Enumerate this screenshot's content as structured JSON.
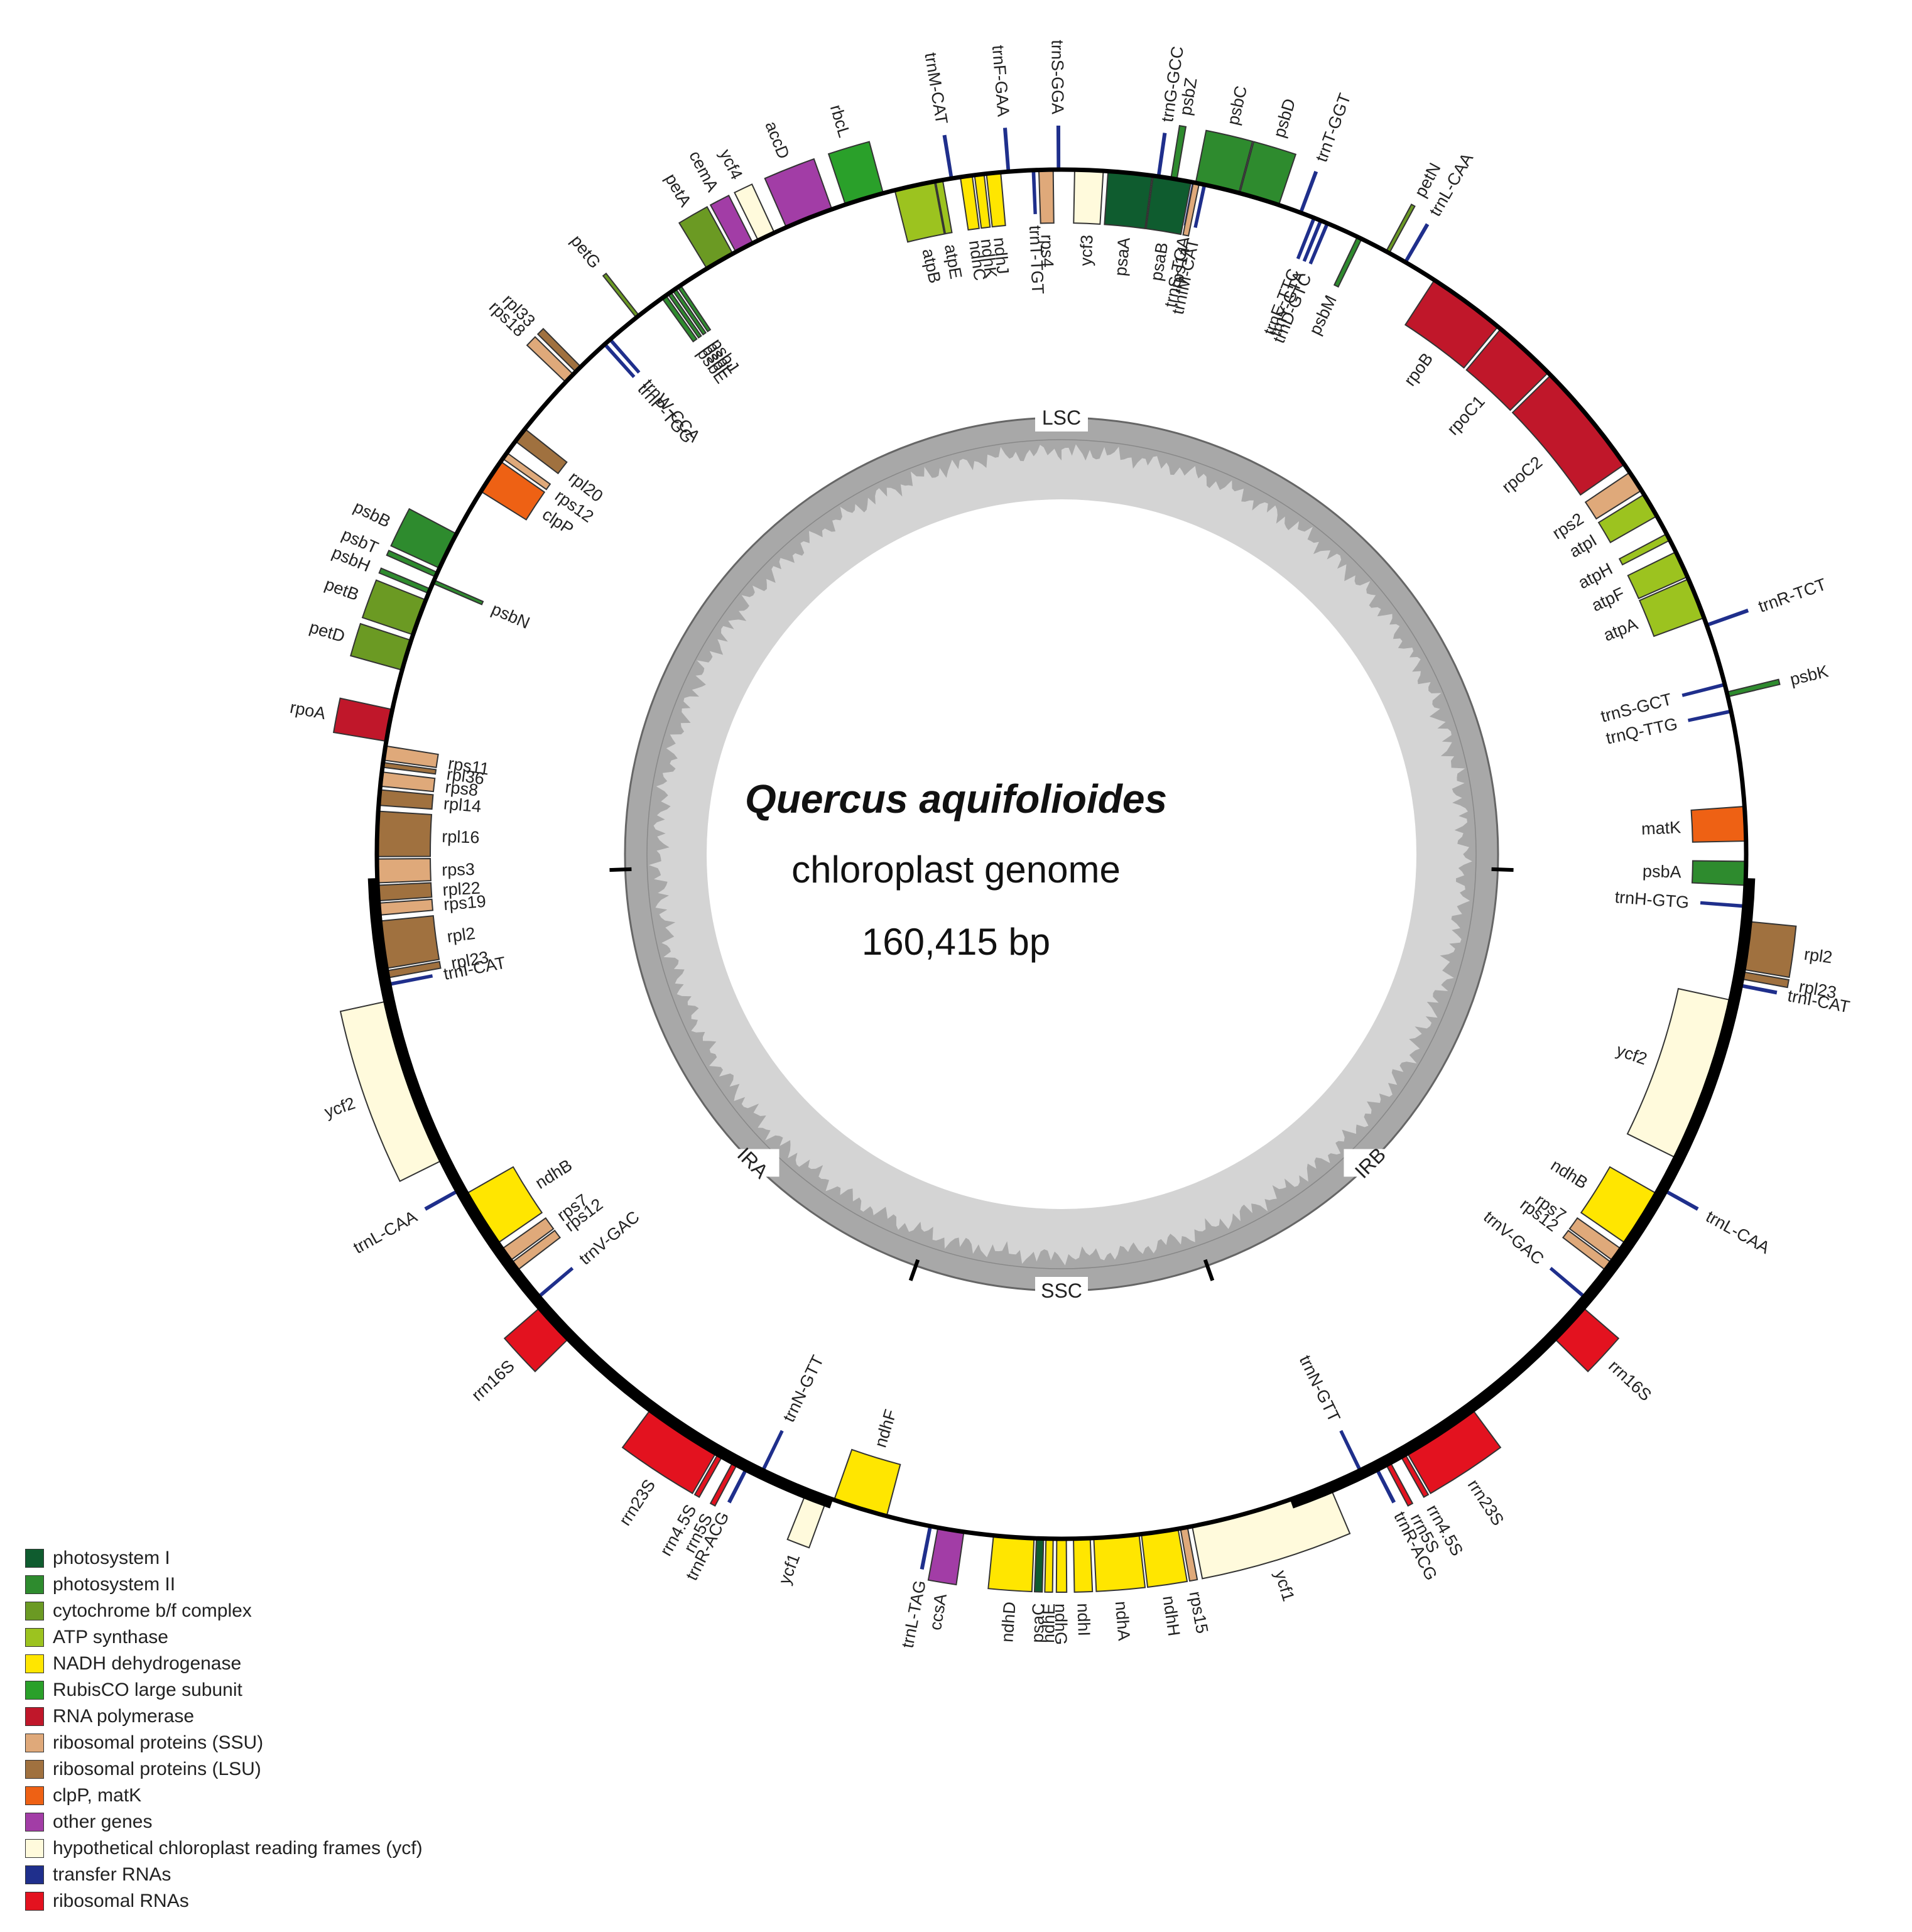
{
  "title": {
    "species": "Quercus aquifolioides",
    "subtitle": "chloroplast genome",
    "length": "160,415 bp"
  },
  "regions": [
    {
      "label": "LSC",
      "at": 0
    },
    {
      "label": "IRB",
      "at": 135
    },
    {
      "label": "SSC",
      "at": 180
    },
    {
      "label": "IRA",
      "at": 225
    }
  ],
  "boundaries": [
    92,
    160.5,
    199.5,
    268
  ],
  "categories": [
    {
      "key": "ps1",
      "label": "photosystem I",
      "color": "#0f5c2f"
    },
    {
      "key": "ps2",
      "label": "photosystem II",
      "color": "#2e8b2e"
    },
    {
      "key": "cyt",
      "label": "cytochrome b/f complex",
      "color": "#6b9a23"
    },
    {
      "key": "atp",
      "label": "ATP synthase",
      "color": "#9cc31f"
    },
    {
      "key": "ndh",
      "label": "NADH dehydrogenase",
      "color": "#ffe600"
    },
    {
      "key": "rbc",
      "label": "RubisCO large subunit",
      "color": "#2aa02a"
    },
    {
      "key": "rpo",
      "label": "RNA polymerase",
      "color": "#c0172a"
    },
    {
      "key": "ssu",
      "label": "ribosomal proteins (SSU)",
      "color": "#dfa97a"
    },
    {
      "key": "lsu",
      "label": "ribosomal proteins (LSU)",
      "color": "#a0713f"
    },
    {
      "key": "clp",
      "label": "clpP, matK",
      "color": "#ee6114"
    },
    {
      "key": "oth",
      "label": "other genes",
      "color": "#a23da6"
    },
    {
      "key": "ycf",
      "label": "hypothetical chloroplast reading frames (ycf)",
      "color": "#fffadc"
    },
    {
      "key": "trna",
      "label": "transfer RNAs",
      "color": "#1f2f8c"
    },
    {
      "key": "rrna",
      "label": "ribosomal RNAs",
      "color": "#e3121f"
    }
  ],
  "genes": [
    {
      "name": "trnG-GCC",
      "cat": "trna",
      "start": 8.0,
      "end": 8.3,
      "side": "out"
    },
    {
      "name": "psbZ",
      "cat": "ps2",
      "start": 9.2,
      "end": 9.7,
      "side": "out"
    },
    {
      "name": "psbC",
      "cat": "ps2",
      "start": 11.3,
      "end": 15.0,
      "side": "out"
    },
    {
      "name": "psbD",
      "cat": "ps2",
      "start": 15.1,
      "end": 18.5,
      "side": "out"
    },
    {
      "name": "trnT-GGT",
      "cat": "trna",
      "start": 20.3,
      "end": 20.6,
      "side": "out"
    },
    {
      "name": "petN",
      "cat": "cyt",
      "start": 28.3,
      "end": 28.6,
      "side": "out"
    },
    {
      "name": "trnL-CAA",
      "cat": "trna",
      "start": 30.0,
      "end": 30.3,
      "side": "out"
    },
    {
      "name": "trnS-TGA",
      "cat": "trna",
      "start": 11.0,
      "end": 11.3,
      "side": "in"
    },
    {
      "name": "trnE-TTC",
      "cat": "trna",
      "start": 21.5,
      "end": 21.8,
      "side": "in"
    },
    {
      "name": "trnY-GTA",
      "cat": "trna",
      "start": 22.1,
      "end": 22.4,
      "side": "in"
    },
    {
      "name": "trnD-GTC",
      "cat": "trna",
      "start": 22.7,
      "end": 23.0,
      "side": "in"
    },
    {
      "name": "psbM",
      "cat": "ps2",
      "start": 25.6,
      "end": 26.0,
      "side": "in"
    },
    {
      "name": "rpoB",
      "cat": "rpo",
      "start": 33.0,
      "end": 39.6,
      "side": "in"
    },
    {
      "name": "rpoC1",
      "cat": "rpo",
      "start": 39.9,
      "end": 45.3,
      "side": "in"
    },
    {
      "name": "rpoC2",
      "cat": "rpo",
      "start": 45.6,
      "end": 55.3,
      "side": "in"
    },
    {
      "name": "rps2",
      "cat": "ssu",
      "start": 56.1,
      "end": 57.9,
      "side": "in"
    },
    {
      "name": "atpI",
      "cat": "atp",
      "start": 58.3,
      "end": 60.4,
      "side": "in"
    },
    {
      "name": "atpH",
      "cat": "atp",
      "start": 62.1,
      "end": 62.7,
      "side": "in"
    },
    {
      "name": "atpF",
      "cat": "atp",
      "start": 63.8,
      "end": 66.1,
      "side": "in"
    },
    {
      "name": "atpA",
      "cat": "atp",
      "start": 66.3,
      "end": 69.8,
      "side": "in"
    },
    {
      "name": "trnR-TCT",
      "cat": "trna",
      "start": 70.3,
      "end": 70.6,
      "side": "out"
    },
    {
      "name": "trnS-GCT",
      "cat": "trna",
      "start": 75.5,
      "end": 75.8,
      "side": "in"
    },
    {
      "name": "psbK",
      "cat": "ps2",
      "start": 76.3,
      "end": 76.7,
      "side": "out"
    },
    {
      "name": "trnQ-TTG",
      "cat": "trna",
      "start": 77.8,
      "end": 78.1,
      "side": "in"
    },
    {
      "name": "matK",
      "cat": "clp",
      "start": 86.0,
      "end": 88.9,
      "side": "in"
    },
    {
      "name": "psbA",
      "cat": "ps2",
      "start": 90.6,
      "end": 92.6,
      "side": "in"
    },
    {
      "name": "trnH-GTG",
      "cat": "trna",
      "start": 94.2,
      "end": 94.5,
      "side": "in"
    },
    {
      "name": "rpl2",
      "cat": "lsu",
      "start": 95.6,
      "end": 99.6,
      "side": "out"
    },
    {
      "name": "rpl23",
      "cat": "lsu",
      "start": 99.8,
      "end": 100.4,
      "side": "out"
    },
    {
      "name": "trnI-CAT",
      "cat": "trna",
      "start": 100.8,
      "end": 101.1,
      "side": "out"
    },
    {
      "name": "ycf2",
      "cat": "ycf",
      "start": 102.3,
      "end": 116.3,
      "side": "in"
    },
    {
      "name": "trnL-CAA",
      "cat": "trna",
      "start": 119.0,
      "end": 119.3,
      "side": "out"
    },
    {
      "name": "ndhB",
      "cat": "ndh",
      "start": 119.7,
      "end": 124.6,
      "side": "in"
    },
    {
      "name": "rps7",
      "cat": "ssu",
      "start": 125.2,
      "end": 126.4,
      "side": "in"
    },
    {
      "name": "rps12",
      "cat": "ssu",
      "start": 126.6,
      "end": 127.4,
      "side": "in"
    },
    {
      "name": "trnV-GAC",
      "cat": "trna",
      "start": 130.1,
      "end": 130.4,
      "side": "in"
    },
    {
      "name": "rrn16S",
      "cat": "rrna",
      "start": 131.0,
      "end": 134.5,
      "side": "out"
    },
    {
      "name": "rrn23S",
      "cat": "rrna",
      "start": 143.5,
      "end": 150.0,
      "side": "out"
    },
    {
      "name": "rrn4.5S",
      "cat": "rrna",
      "start": 150.2,
      "end": 150.6,
      "side": "out"
    },
    {
      "name": "rrn5S",
      "cat": "rrna",
      "start": 151.6,
      "end": 152.0,
      "side": "out"
    },
    {
      "name": "trnR-ACG",
      "cat": "trna",
      "start": 152.7,
      "end": 153.0,
      "side": "out"
    },
    {
      "name": "trnN-GTT",
      "cat": "trna",
      "start": 154.0,
      "end": 154.3,
      "side": "in"
    },
    {
      "name": "ycf1",
      "cat": "ycf",
      "start": 157.0,
      "end": 169.0,
      "side": "out"
    },
    {
      "name": "rps15",
      "cat": "ssu",
      "start": 169.4,
      "end": 170.0,
      "side": "out"
    },
    {
      "name": "ndhH",
      "cat": "ndh",
      "start": 170.2,
      "end": 173.3,
      "side": "out"
    },
    {
      "name": "ndhA",
      "cat": "ndh",
      "start": 173.5,
      "end": 177.3,
      "side": "out"
    },
    {
      "name": "ndhI",
      "cat": "ndh",
      "start": 177.6,
      "end": 179.0,
      "side": "out"
    },
    {
      "name": "ndhG",
      "cat": "ndh",
      "start": 179.6,
      "end": 180.4,
      "side": "out"
    },
    {
      "name": "ndhE",
      "cat": "ndh",
      "start": 180.7,
      "end": 181.3,
      "side": "out"
    },
    {
      "name": "psaC",
      "cat": "ps1",
      "start": 181.5,
      "end": 182.1,
      "side": "out"
    },
    {
      "name": "ndhD",
      "cat": "ndh",
      "start": 182.3,
      "end": 185.7,
      "side": "out"
    },
    {
      "name": "ccsA",
      "cat": "oth",
      "start": 188.2,
      "end": 190.4,
      "side": "out"
    },
    {
      "name": "trnL-TAG",
      "cat": "trna",
      "start": 190.9,
      "end": 191.2,
      "side": "out"
    },
    {
      "name": "ndhF",
      "cat": "ndh",
      "start": 194.8,
      "end": 199.4,
      "side": "in"
    },
    {
      "name": "ycf1",
      "cat": "ycf",
      "start": 200.0,
      "end": 201.8,
      "side": "out"
    },
    {
      "name": "trnN-GTT",
      "cat": "trna",
      "start": 205.7,
      "end": 206.0,
      "side": "in"
    },
    {
      "name": "trnR-ACG",
      "cat": "trna",
      "start": 207.0,
      "end": 207.3,
      "side": "out"
    },
    {
      "name": "rrn5S",
      "cat": "rrna",
      "start": 208.0,
      "end": 208.4,
      "side": "out"
    },
    {
      "name": "rrn4.5S",
      "cat": "rrna",
      "start": 209.4,
      "end": 209.8,
      "side": "out"
    },
    {
      "name": "rrn23S",
      "cat": "rrna",
      "start": 210.0,
      "end": 216.5,
      "side": "out"
    },
    {
      "name": "rrn16S",
      "cat": "rrna",
      "start": 225.5,
      "end": 229.0,
      "side": "out"
    },
    {
      "name": "trnV-GAC",
      "cat": "trna",
      "start": 229.6,
      "end": 229.9,
      "side": "in"
    },
    {
      "name": "rps12",
      "cat": "ssu",
      "start": 232.6,
      "end": 233.4,
      "side": "in"
    },
    {
      "name": "rps7",
      "cat": "ssu",
      "start": 233.6,
      "end": 234.8,
      "side": "in"
    },
    {
      "name": "ndhB",
      "cat": "ndh",
      "start": 235.4,
      "end": 240.3,
      "side": "in"
    },
    {
      "name": "trnL-CAA",
      "cat": "trna",
      "start": 240.7,
      "end": 241.0,
      "side": "out"
    },
    {
      "name": "ycf2",
      "cat": "ycf",
      "start": 243.7,
      "end": 257.7,
      "side": "out"
    },
    {
      "name": "trnI-CAT",
      "cat": "trna",
      "start": 258.9,
      "end": 259.2,
      "side": "in"
    },
    {
      "name": "rpl23",
      "cat": "lsu",
      "start": 259.6,
      "end": 260.2,
      "side": "in"
    },
    {
      "name": "rpl2",
      "cat": "lsu",
      "start": 260.4,
      "end": 264.4,
      "side": "in"
    },
    {
      "name": "rps19",
      "cat": "ssu",
      "start": 264.9,
      "end": 265.9,
      "side": "in"
    },
    {
      "name": "rpl22",
      "cat": "lsu",
      "start": 266.1,
      "end": 267.4,
      "side": "in"
    },
    {
      "name": "rps3",
      "cat": "ssu",
      "start": 267.6,
      "end": 269.6,
      "side": "in"
    },
    {
      "name": "rpl16",
      "cat": "lsu",
      "start": 269.8,
      "end": 273.6,
      "side": "in"
    },
    {
      "name": "rpl14",
      "cat": "lsu",
      "start": 274.1,
      "end": 275.4,
      "side": "in"
    },
    {
      "name": "rps8",
      "cat": "ssu",
      "start": 275.7,
      "end": 276.9,
      "side": "in"
    },
    {
      "name": "rpl36",
      "cat": "lsu",
      "start": 277.3,
      "end": 277.7,
      "side": "in"
    },
    {
      "name": "rps11",
      "cat": "ssu",
      "start": 277.9,
      "end": 279.1,
      "side": "in"
    },
    {
      "name": "rpoA",
      "cat": "rpo",
      "start": 279.5,
      "end": 282.2,
      "side": "out"
    },
    {
      "name": "petD",
      "cat": "cyt",
      "start": 285.6,
      "end": 288.2,
      "side": "out"
    },
    {
      "name": "petB",
      "cat": "cyt",
      "start": 288.7,
      "end": 291.8,
      "side": "out"
    },
    {
      "name": "psbH",
      "cat": "ps2",
      "start": 292.4,
      "end": 292.8,
      "side": "out"
    },
    {
      "name": "psbN",
      "cat": "ps2",
      "start": 293.3,
      "end": 293.6,
      "side": "in"
    },
    {
      "name": "psbT",
      "cat": "ps2",
      "start": 293.9,
      "end": 294.3,
      "side": "out"
    },
    {
      "name": "psbB",
      "cat": "ps2",
      "start": 294.7,
      "end": 297.9,
      "side": "out"
    },
    {
      "name": "clpP",
      "cat": "clp",
      "start": 302.0,
      "end": 305.0,
      "side": "in"
    },
    {
      "name": "rps12",
      "cat": "ssu",
      "start": 305.3,
      "end": 305.9,
      "side": "in"
    },
    {
      "name": "rpl20",
      "cat": "lsu",
      "start": 307.1,
      "end": 308.4,
      "side": "in"
    },
    {
      "name": "rps18",
      "cat": "ssu",
      "start": 313.6,
      "end": 314.5,
      "side": "out"
    },
    {
      "name": "rpl33",
      "cat": "lsu",
      "start": 314.8,
      "end": 315.4,
      "side": "out"
    },
    {
      "name": "trnP-TGG",
      "cat": "trna",
      "start": 318.0,
      "end": 318.3,
      "side": "in"
    },
    {
      "name": "trnW-CCA",
      "cat": "trna",
      "start": 318.6,
      "end": 318.9,
      "side": "in"
    },
    {
      "name": "petG",
      "cat": "cyt",
      "start": 321.6,
      "end": 321.9,
      "side": "out"
    },
    {
      "name": "psbE",
      "cat": "ps2",
      "start": 324.3,
      "end": 324.7,
      "side": "in"
    },
    {
      "name": "psbF",
      "cat": "ps2",
      "start": 324.9,
      "end": 325.2,
      "side": "in"
    },
    {
      "name": "psbL",
      "cat": "ps2",
      "start": 325.4,
      "end": 325.7,
      "side": "in"
    },
    {
      "name": "psbJ",
      "cat": "ps2",
      "start": 325.9,
      "end": 326.2,
      "side": "in"
    },
    {
      "name": "petA",
      "cat": "cyt",
      "start": 328.8,
      "end": 331.3,
      "side": "out"
    },
    {
      "name": "cemA",
      "cat": "oth",
      "start": 331.6,
      "end": 333.2,
      "side": "out"
    },
    {
      "name": "ycf4",
      "cat": "ycf",
      "start": 333.7,
      "end": 335.2,
      "side": "out"
    },
    {
      "name": "accD",
      "cat": "oth",
      "start": 336.3,
      "end": 340.4,
      "side": "out"
    },
    {
      "name": "rbcL",
      "cat": "rbc",
      "start": 341.6,
      "end": 344.9,
      "side": "out"
    },
    {
      "name": "atpB",
      "cat": "atp",
      "start": 345.9,
      "end": 349.3,
      "side": "in"
    },
    {
      "name": "atpE",
      "cat": "atp",
      "start": 349.4,
      "end": 350.0,
      "side": "in"
    },
    {
      "name": "trnM-CAT",
      "cat": "trna",
      "start": 350.6,
      "end": 350.9,
      "side": "out"
    },
    {
      "name": "ndhC",
      "cat": "ndh",
      "start": 351.5,
      "end": 352.5,
      "side": "in"
    },
    {
      "name": "ndhK",
      "cat": "ndh",
      "start": 352.7,
      "end": 353.5,
      "side": "in"
    },
    {
      "name": "ndhJ",
      "cat": "ndh",
      "start": 353.7,
      "end": 354.9,
      "side": "in"
    },
    {
      "name": "trnF-GAA",
      "cat": "trna",
      "start": 355.4,
      "end": 355.7,
      "side": "out"
    },
    {
      "name": "trnT-TGT",
      "cat": "trna",
      "start": 357.5,
      "end": 357.8,
      "side": "in"
    },
    {
      "name": "rps4",
      "cat": "ssu",
      "start": 358.1,
      "end": 359.3,
      "side": "in"
    },
    {
      "name": "trnS-GGA",
      "cat": "trna",
      "start": 359.6,
      "end": 359.9,
      "side": "out"
    },
    {
      "name": "ycf3",
      "cat": "ycf",
      "start": 1.1,
      "end": 3.5,
      "side": "in"
    },
    {
      "name": "psaA",
      "cat": "ps1",
      "start": 3.9,
      "end": 7.6,
      "side": "in"
    },
    {
      "name": "psaB",
      "cat": "ps1",
      "start": 7.7,
      "end": 10.9,
      "side": "in"
    },
    {
      "name": "rps14",
      "cat": "ssu",
      "start": 11.1,
      "end": 11.6,
      "side": "in"
    },
    {
      "name": "trnfM-CAT",
      "cat": "trna",
      "start": 11.9,
      "end": 12.2,
      "side": "in"
    }
  ]
}
